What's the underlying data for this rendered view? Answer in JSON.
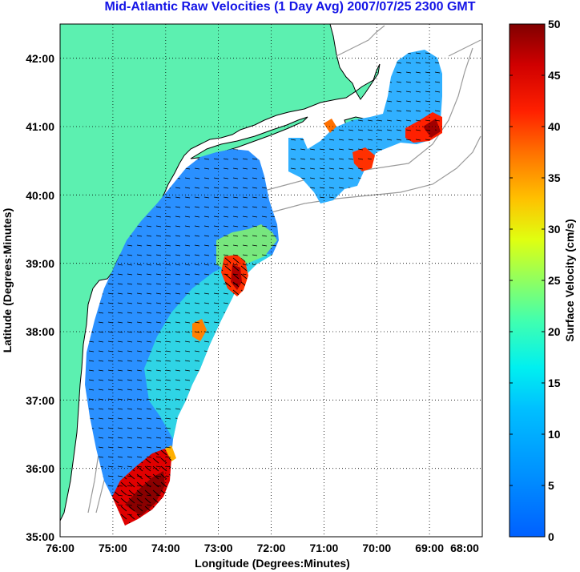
{
  "title": "Mid-Atlantic Raw Velocities (1 Day Avg) 2007/07/25 2300 GMT",
  "map": {
    "xlabel": "Longitude (Degrees:Minutes)",
    "ylabel": "Latitude (Degrees:Minutes)",
    "lon_ticks": [
      "76:00",
      "75:00",
      "74:00",
      "73:00",
      "72:00",
      "71:00",
      "70:00",
      "69:00",
      "68:00"
    ],
    "lat_ticks": [
      "35:00",
      "36:00",
      "37:00",
      "38:00",
      "39:00",
      "40:00",
      "41:00",
      "42:00"
    ],
    "lon_range": [
      -76,
      -68
    ],
    "lat_range": [
      35,
      42.5
    ],
    "land_color": "#5cf0b0",
    "coast_color": "#000000",
    "bathymetry_color": "#9a9a9a",
    "grid": "dotted"
  },
  "colorbar": {
    "label": "Surface Velocity (cm/s)",
    "ticks": [
      "0",
      "5",
      "10",
      "15",
      "20",
      "25",
      "30",
      "35",
      "40",
      "45",
      "50"
    ],
    "range": [
      0,
      50
    ]
  }
}
